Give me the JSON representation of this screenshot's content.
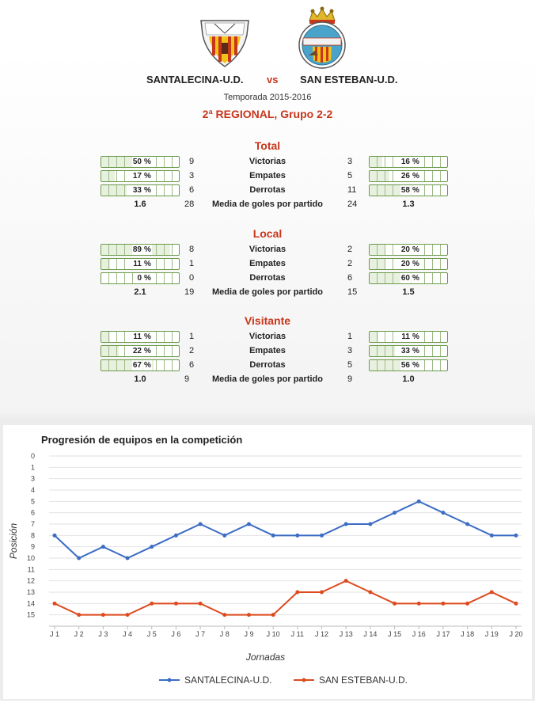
{
  "match": {
    "home_team": "SANTALECINA-U.D.",
    "vs": "vs",
    "away_team": "SAN ESTEBAN-U.D.",
    "season": "Temporada 2015-2016",
    "league": "2ª REGIONAL, Grupo 2-2",
    "away_crest_text": "U. D. SAN ESTEBAN"
  },
  "sections": [
    {
      "title": "Total",
      "rows": [
        {
          "label": "Victorias",
          "home_pct": 50,
          "home_count": "9",
          "away_count": "3",
          "away_pct": 16
        },
        {
          "label": "Empates",
          "home_pct": 17,
          "home_count": "3",
          "away_count": "5",
          "away_pct": 26
        },
        {
          "label": "Derrotas",
          "home_pct": 33,
          "home_count": "6",
          "away_count": "11",
          "away_pct": 58
        }
      ],
      "goals": {
        "label": "Media de goles por partido",
        "home_avg": "1.6",
        "home_goals": "28",
        "away_goals": "24",
        "away_avg": "1.3"
      }
    },
    {
      "title": "Local",
      "rows": [
        {
          "label": "Victorias",
          "home_pct": 89,
          "home_count": "8",
          "away_count": "2",
          "away_pct": 20
        },
        {
          "label": "Empates",
          "home_pct": 11,
          "home_count": "1",
          "away_count": "2",
          "away_pct": 20
        },
        {
          "label": "Derrotas",
          "home_pct": 0,
          "home_count": "0",
          "away_count": "6",
          "away_pct": 60
        }
      ],
      "goals": {
        "label": "Media de goles por partido",
        "home_avg": "2.1",
        "home_goals": "19",
        "away_goals": "15",
        "away_avg": "1.5"
      }
    },
    {
      "title": "Visitante",
      "rows": [
        {
          "label": "Victorias",
          "home_pct": 11,
          "home_count": "1",
          "away_count": "1",
          "away_pct": 11
        },
        {
          "label": "Empates",
          "home_pct": 22,
          "home_count": "2",
          "away_count": "3",
          "away_pct": 33
        },
        {
          "label": "Derrotas",
          "home_pct": 67,
          "home_count": "6",
          "away_count": "5",
          "away_pct": 56
        }
      ],
      "goals": {
        "label": "Media de goles por partido",
        "home_avg": "1.0",
        "home_goals": "9",
        "away_goals": "9",
        "away_avg": "1.0"
      }
    }
  ],
  "pct_sign": "%",
  "colors": {
    "accent": "#c8361b",
    "series_home": "#3b6cc4",
    "series_away": "#dd4a1e",
    "bar_border": "#6a9a48"
  },
  "chart_data": {
    "type": "line",
    "title": "Progresión de equipos en la competición",
    "xlabel": "Jornadas",
    "ylabel": "Posición",
    "y_inverted": true,
    "ylim": [
      0,
      15
    ],
    "yticks": [
      "0",
      "1",
      "3",
      "4",
      "5",
      "6",
      "7",
      "8",
      "9",
      "10",
      "11",
      "12",
      "13",
      "14",
      "15"
    ],
    "x": [
      "J 1",
      "J 2",
      "J 3",
      "J 4",
      "J 5",
      "J 6",
      "J 7",
      "J 8",
      "J 9",
      "J 10",
      "J 11",
      "J 12",
      "J 13",
      "J 14",
      "J 15",
      "J 16",
      "J 17",
      "J 18",
      "J 19",
      "J 20"
    ],
    "series": [
      {
        "name": "SANTALECINA-U.D.",
        "color": "#3b6cc4",
        "values": [
          7,
          9,
          8,
          9,
          8,
          7,
          6,
          7,
          6,
          7,
          7,
          7,
          6,
          6,
          5,
          4,
          5,
          6,
          7,
          7
        ]
      },
      {
        "name": "SAN ESTEBAN-U.D.",
        "color": "#dd4a1e",
        "values": [
          13,
          14,
          14,
          14,
          13,
          13,
          13,
          14,
          14,
          14,
          12,
          12,
          11,
          12,
          13,
          13,
          13,
          13,
          12,
          13
        ]
      }
    ],
    "grid": true,
    "legend": "bottom"
  }
}
